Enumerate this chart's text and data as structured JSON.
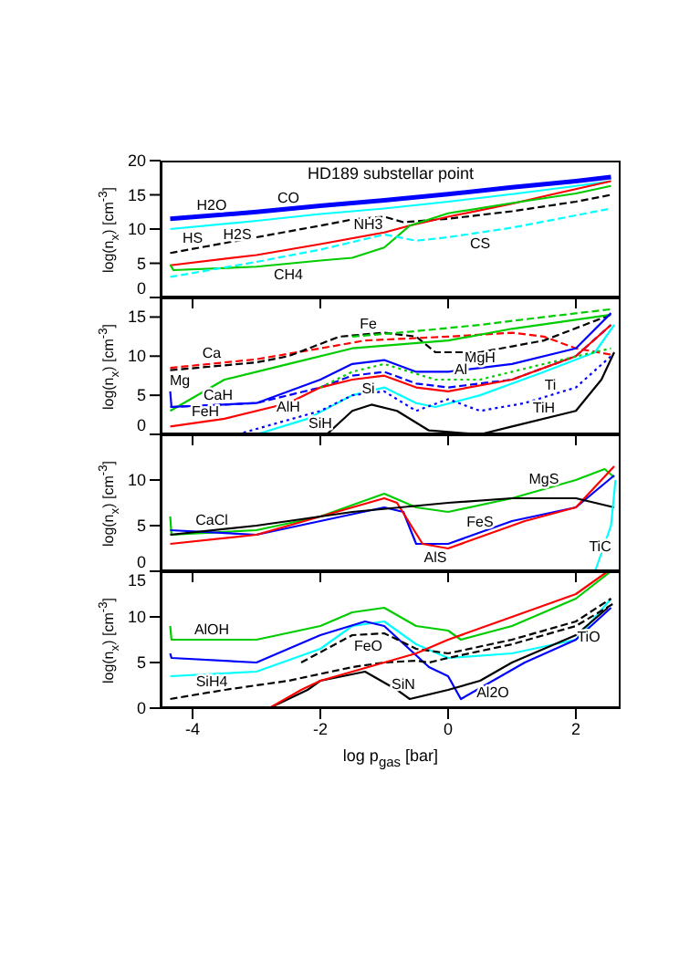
{
  "chart_data": [
    {
      "type": "line",
      "title": "HD189 substellar point",
      "ylabel": "log(n$_{x}$) [cm$^{-3}$]",
      "xlim": [
        -4.5,
        2.7
      ],
      "xticks": [
        -4,
        -2,
        0,
        2
      ],
      "ylim": [
        0,
        20
      ],
      "yticks": [
        0,
        5,
        10,
        15,
        20
      ],
      "tick_labels": "y",
      "series": [
        {
          "color": "#0000ff",
          "line_style": "solid",
          "x": [
            -4.35,
            -3,
            -2,
            -1,
            0,
            1,
            2,
            2.55
          ],
          "values": [
            11.5,
            12.5,
            13.4,
            14.2,
            15.1,
            16.1,
            17.0,
            17.6
          ]
        },
        {
          "color": "#00ffff",
          "line_style": "solid",
          "x": [
            -4.35,
            -3,
            -2,
            -1,
            0,
            1,
            2,
            2.55
          ],
          "values": [
            10.0,
            11.2,
            12.2,
            13.0,
            14.0,
            15.1,
            16.3,
            17.0
          ]
        },
        {
          "color": "#000000",
          "line_style": "dashed",
          "x": [
            -4.35,
            -3,
            -2,
            -1.5,
            -1,
            -0.7,
            0,
            1,
            2,
            2.55
          ],
          "values": [
            6.5,
            8.8,
            10.5,
            11.4,
            11.8,
            11.0,
            11.5,
            12.6,
            14.0,
            15.0
          ]
        },
        {
          "color": "#ff0000",
          "line_style": "solid",
          "x": [
            -4.35,
            -3,
            -2,
            -1,
            -0.6,
            0,
            1,
            1.6,
            2.55
          ],
          "values": [
            4.7,
            6.2,
            7.8,
            9.5,
            10.5,
            11.8,
            13.7,
            15.0,
            17.0
          ]
        },
        {
          "color": "#00cc00",
          "line_style": "solid",
          "x": [
            -4.35,
            -4.3,
            -3,
            -2,
            -1.5,
            -1,
            -0.6,
            0,
            1,
            2,
            2.55
          ],
          "values": [
            4.8,
            4.0,
            4.5,
            5.4,
            5.8,
            7.3,
            10.5,
            12.3,
            13.8,
            15.2,
            16.3
          ]
        },
        {
          "color": "#00ffff",
          "line_style": "dashed",
          "x": [
            -4.35,
            -3,
            -2,
            -1,
            -0.5,
            0,
            1,
            2,
            2.55
          ],
          "values": [
            3.0,
            5.2,
            7.0,
            9.2,
            8.3,
            8.8,
            10.2,
            12.0,
            13.0
          ]
        }
      ],
      "annotations": [
        {
          "text": "H2O",
          "x": -3.7,
          "y": 12.0
        },
        {
          "text": "CO",
          "x": -2.5,
          "y": 13.0
        },
        {
          "text": "H2S",
          "x": -3.3,
          "y": 10.9
        },
        {
          "text": "HS",
          "x": -4,
          "y": 7.1
        },
        {
          "text": "NH3",
          "x": -1.25,
          "y": 9.1
        },
        {
          "text": "CH4",
          "x": -2.5,
          "y": 5.0
        },
        {
          "text": "CS",
          "x": 0.5,
          "y": 9.5
        }
      ]
    },
    {
      "type": "line",
      "ylabel": "log(n$_{x}$) [cm$^{-3}$]",
      "xlim": [
        -4.5,
        2.7
      ],
      "xticks": [
        -4,
        -2,
        0,
        2
      ],
      "ylim": [
        0,
        17.5
      ],
      "yticks": [
        0,
        5,
        10,
        15
      ],
      "tick_labels": "y",
      "series": [
        {
          "color": "#ff0000",
          "line_style": "dashed",
          "x": [
            -4.35,
            -3,
            -2,
            -1.3,
            0,
            1,
            1.5,
            2,
            2.55
          ],
          "values": [
            8.5,
            9.6,
            11.0,
            12.0,
            12.5,
            13.0,
            12.5,
            11.0,
            10.2
          ]
        },
        {
          "color": "#000000",
          "line_style": "dashed",
          "x": [
            -4.35,
            -3,
            -2.5,
            -1.7,
            -1,
            -0.5,
            -0.2,
            0.5,
            1.5,
            2.55
          ],
          "values": [
            8.2,
            9.2,
            10.0,
            12.5,
            13.0,
            12.5,
            10.5,
            10.5,
            12.0,
            15.3
          ]
        },
        {
          "color": "#00cc00",
          "line_style": "dashed",
          "x": [
            -1.5,
            -0.5,
            0.5,
            1.5,
            2.55
          ],
          "values": [
            12.5,
            13.2,
            14.0,
            15.0,
            16.0
          ]
        },
        {
          "color": "#00cc00",
          "line_style": "solid",
          "x": [
            -4.35,
            -3.5,
            -2.5,
            -1.5,
            0,
            1,
            2.55
          ],
          "values": [
            3.0,
            7.0,
            9.0,
            11.0,
            12.0,
            13.5,
            15.3
          ]
        },
        {
          "color": "#0000ff",
          "line_style": "solid",
          "x": [
            -4.35,
            -4.33,
            -3,
            -2,
            -1.5,
            -1,
            -0.5,
            0,
            1,
            2,
            2.55
          ],
          "values": [
            5.5,
            3.5,
            4.0,
            7.0,
            9.0,
            9.5,
            8.0,
            8.0,
            9.0,
            11.0,
            15.5
          ]
        },
        {
          "color": "#0000ff",
          "line_style": "dashed",
          "x": [
            -4.35,
            -3,
            -2,
            -1.5,
            -1,
            -0.5,
            0,
            1,
            2,
            2.55
          ],
          "values": [
            3.5,
            4.0,
            6.0,
            7.5,
            8.0,
            6.5,
            6.0,
            7.0,
            10.0,
            14.0
          ]
        },
        {
          "color": "#ff0000",
          "line_style": "solid",
          "x": [
            -4.35,
            -3.5,
            -2.5,
            -2,
            -1.5,
            -1,
            -0.5,
            0,
            1,
            2,
            2.55
          ],
          "values": [
            1.0,
            2.0,
            4.0,
            6.0,
            7.0,
            7.5,
            6.0,
            5.5,
            7.0,
            10.0,
            14.0
          ]
        },
        {
          "color": "#00ffff",
          "line_style": "solid",
          "x": [
            -3,
            -2.2,
            -1.5,
            -1,
            -0.5,
            -0.2,
            0.5,
            1.5,
            2.3,
            2.6
          ],
          "values": [
            0,
            2.0,
            5.0,
            6.0,
            4.0,
            3.5,
            5.0,
            8.0,
            10.5,
            14.0
          ]
        },
        {
          "color": "#0000ff",
          "line_style": "dotted",
          "x": [
            -3.3,
            -2,
            -1.5,
            -1,
            -0.5,
            0,
            0.5,
            1.2,
            2,
            2.55
          ],
          "values": [
            0,
            3.0,
            5.0,
            5.5,
            3.0,
            4.5,
            3.0,
            4.0,
            6.0,
            10.0
          ]
        },
        {
          "color": "#00cc00",
          "line_style": "dotted",
          "x": [
            -2,
            -1.5,
            -1,
            -0.2,
            0.5,
            1.5,
            2.55
          ],
          "values": [
            6.0,
            8.0,
            9.0,
            7.0,
            7.0,
            9.0,
            11.0
          ]
        },
        {
          "color": "#000000",
          "line_style": "solid",
          "x": [
            -1.9,
            -1.5,
            -1.2,
            -0.8,
            -0.3,
            0.5,
            1,
            2,
            2.4,
            2.6
          ],
          "values": [
            0,
            3.0,
            3.8,
            3.0,
            0.5,
            0,
            1.0,
            3.0,
            7.0,
            10.5
          ]
        }
      ],
      "annotations": [
        {
          "text": "Ca",
          "x": -3.7,
          "y": 9.0
        },
        {
          "text": "Fe",
          "x": -1.25,
          "y": 12.8
        },
        {
          "text": "Mg",
          "x": -4.2,
          "y": 8.3
        },
        {
          "text": "CaH",
          "x": -3.6,
          "y": 6.5
        },
        {
          "text": "MgH",
          "x": 0.5,
          "y": 8.5
        },
        {
          "text": "AlH",
          "x": -2.5,
          "y": 5.0
        },
        {
          "text": "Si",
          "x": -1.25,
          "y": 7.3
        },
        {
          "text": "Al",
          "x": 0.2,
          "y": 7.0
        },
        {
          "text": "FeH",
          "x": -3.8,
          "y": 1.6
        },
        {
          "text": "SiH",
          "x": -2.0,
          "y": 2.9
        },
        {
          "text": "Ti",
          "x": 1.6,
          "y": 5.0
        },
        {
          "text": "TiH",
          "x": 1.5,
          "y": 2.0
        }
      ]
    },
    {
      "type": "line",
      "ylabel": "log(n$_{x}$) [cm$^{-3}$]",
      "xlim": [
        -4.5,
        2.7
      ],
      "xticks": [
        -4,
        -2,
        0,
        2
      ],
      "ylim": [
        0,
        15
      ],
      "yticks": [
        0,
        5,
        10
      ],
      "tick_labels": "y",
      "series": [
        {
          "color": "#00cc00",
          "line_style": "solid",
          "x": [
            -4.35,
            -4.33,
            -3,
            -2,
            -1,
            -0.5,
            0,
            1,
            2,
            2.45,
            2.6
          ],
          "values": [
            6.0,
            4.0,
            4.5,
            6.0,
            8.5,
            7.0,
            6.5,
            8.0,
            10.0,
            11.2,
            10.3
          ]
        },
        {
          "color": "#0000ff",
          "line_style": "solid",
          "x": [
            -4.35,
            -3,
            -2,
            -1,
            -0.7,
            -0.5,
            0,
            1,
            2,
            2.6
          ],
          "values": [
            4.5,
            4.0,
            5.5,
            7.0,
            6.5,
            3.0,
            3.0,
            5.5,
            7.0,
            10.5
          ]
        },
        {
          "color": "#ff0000",
          "line_style": "solid",
          "x": [
            -4.35,
            -3,
            -2,
            -1,
            -0.8,
            -0.4,
            0,
            1.2,
            2,
            2.6
          ],
          "values": [
            3.0,
            4.0,
            6.0,
            8.0,
            7.5,
            3.0,
            2.5,
            5.5,
            7.0,
            11.5
          ]
        },
        {
          "color": "#000000",
          "line_style": "solid",
          "x": [
            -4.35,
            -3,
            -2,
            -1.5,
            0,
            1,
            2,
            2.6
          ],
          "values": [
            4.0,
            5.0,
            6.0,
            6.5,
            7.5,
            8.0,
            8.0,
            7.0
          ]
        },
        {
          "color": "#00ffff",
          "line_style": "solid",
          "x": [
            2.3,
            2.45,
            2.55,
            2.62
          ],
          "values": [
            0,
            3.0,
            5.0,
            10.0
          ]
        }
      ],
      "annotations": [
        {
          "text": "CaCl",
          "x": -3.7,
          "y": 4.5
        },
        {
          "text": "MgS",
          "x": 1.5,
          "y": 9.0
        },
        {
          "text": "FeS",
          "x": 0.5,
          "y": 4.3
        },
        {
          "text": "AlS",
          "x": -0.2,
          "y": 2.8
        },
        {
          "text": "TiC",
          "x": 2.38,
          "y": 1.6
        }
      ]
    },
    {
      "type": "line",
      "ylabel": "log(n$_{x}$) [cm$^{-3}$]",
      "xlabel": "log p$_{gas}$ [bar]",
      "xlim": [
        -4.5,
        2.7
      ],
      "xticks": [
        -4,
        -2,
        0,
        2
      ],
      "ylim": [
        0,
        15
      ],
      "yticks": [
        0,
        5,
        10,
        15
      ],
      "series": [
        {
          "color": "#00cc00",
          "line_style": "solid",
          "x": [
            -4.35,
            -4.33,
            -3,
            -2,
            -1.5,
            -1,
            -0.5,
            0,
            0.2,
            1,
            2,
            2.55
          ],
          "values": [
            9.0,
            7.5,
            7.5,
            9.0,
            10.5,
            11.0,
            9.0,
            8.5,
            7.5,
            9.0,
            12.0,
            15.0
          ]
        },
        {
          "color": "#00ffff",
          "line_style": "solid",
          "x": [
            -4.35,
            -3,
            -2,
            -1.5,
            -1,
            -0.5,
            0,
            1,
            2,
            2.55
          ],
          "values": [
            3.5,
            4.0,
            6.5,
            9.0,
            9.5,
            7.0,
            5.5,
            6.0,
            7.5,
            12.0
          ]
        },
        {
          "color": "#0000ff",
          "line_style": "solid",
          "x": [
            -4.35,
            -4.33,
            -3,
            -2,
            -1.3,
            -1,
            -0.3,
            0,
            0.2,
            1.2,
            2,
            2.55
          ],
          "values": [
            6.0,
            5.5,
            5.0,
            8.0,
            9.5,
            9.0,
            4.5,
            3.5,
            1.0,
            5.0,
            7.5,
            11.0
          ]
        },
        {
          "color": "#000000",
          "line_style": "dashed",
          "x": [
            -2.3,
            -1.5,
            -1,
            -0.5,
            0,
            1,
            2,
            2.55
          ],
          "values": [
            5.0,
            8.0,
            8.2,
            6.5,
            6.0,
            7.5,
            9.5,
            12.0
          ]
        },
        {
          "color": "#000000",
          "line_style": "dashed",
          "x": [
            -4.35,
            -3.5,
            -2.5,
            -1.5,
            -1,
            -0.5,
            -0.3,
            0,
            1,
            2,
            2.6
          ],
          "values": [
            1.0,
            2.0,
            3.0,
            4.5,
            5.0,
            5.2,
            5.0,
            5.5,
            7.0,
            9.0,
            11.5
          ]
        },
        {
          "color": "#000000",
          "line_style": "solid",
          "x": [
            -2.8,
            -2.2,
            -2,
            -1.3,
            -0.8,
            -0.6,
            0,
            0.5,
            1,
            2,
            2.5
          ],
          "values": [
            0,
            2.0,
            3.0,
            4.0,
            2.0,
            1.0,
            2.0,
            3.0,
            5.0,
            8.0,
            11.0
          ]
        },
        {
          "color": "#ff0000",
          "line_style": "solid",
          "x": [
            -2.8,
            -2.3,
            -2,
            -1.5,
            -1,
            -0.5,
            0,
            1,
            2,
            2.5
          ],
          "values": [
            0,
            2.0,
            3.0,
            4.0,
            5.0,
            6.0,
            7.5,
            10.0,
            12.5,
            15.0
          ]
        }
      ],
      "annotations": [
        {
          "text": "AlOH",
          "x": -3.7,
          "y": 7.5
        },
        {
          "text": "FeO",
          "x": -1.25,
          "y": 8.1
        },
        {
          "text": "SiH4",
          "x": -3.7,
          "y": 1.8
        },
        {
          "text": "SiN",
          "x": -0.7,
          "y": 1.5
        },
        {
          "text": "Al2O",
          "x": 0.7,
          "y": 3.0
        },
        {
          "text": "TiO",
          "x": 2.2,
          "y": 9.1
        }
      ]
    }
  ]
}
